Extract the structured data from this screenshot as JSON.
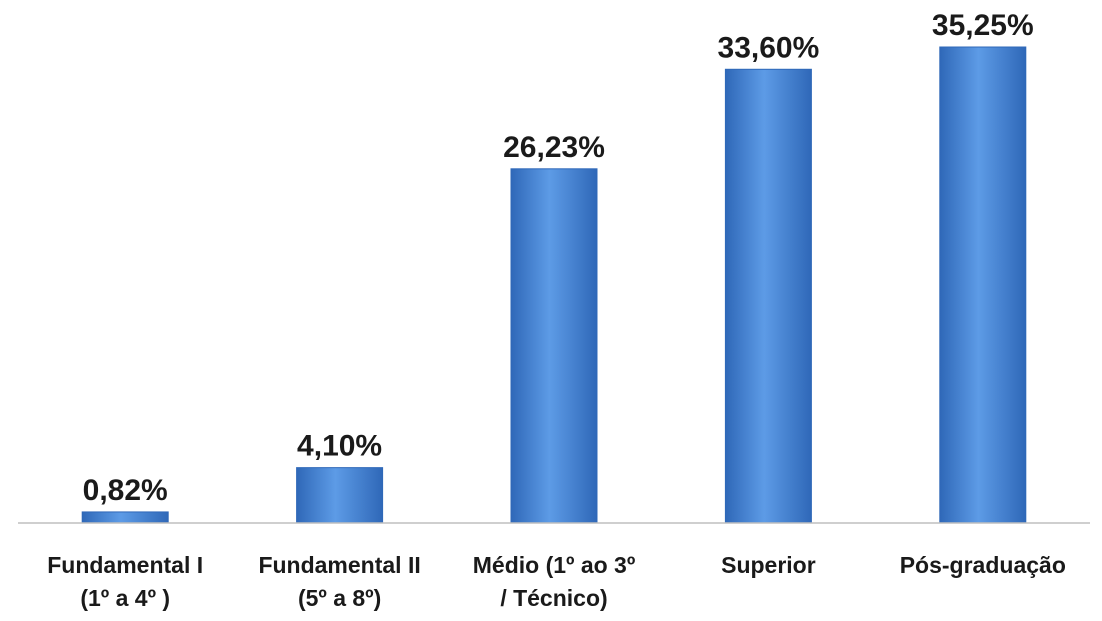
{
  "chart_data": {
    "type": "bar",
    "categories": [
      [
        "Fundamental I",
        "(1º a 4º )"
      ],
      [
        "Fundamental II",
        "(5º a 8º)"
      ],
      [
        "Médio (1º ao 3º",
        "/ Técnico)"
      ],
      [
        "Superior"
      ],
      [
        "Pós-graduação"
      ]
    ],
    "values": [
      0.82,
      4.1,
      26.23,
      33.6,
      35.25
    ],
    "data_labels": [
      "0,82%",
      "4,10%",
      "26,23%",
      "33,60%",
      "35,25%"
    ],
    "title": "",
    "xlabel": "",
    "ylabel": "",
    "ylim": [
      0,
      40
    ],
    "grid": false,
    "legend": "none",
    "colors": {
      "bar_top": "#5d9be6",
      "bar_bottom": "#2f68b8",
      "axis": "#bfbfbf"
    }
  }
}
